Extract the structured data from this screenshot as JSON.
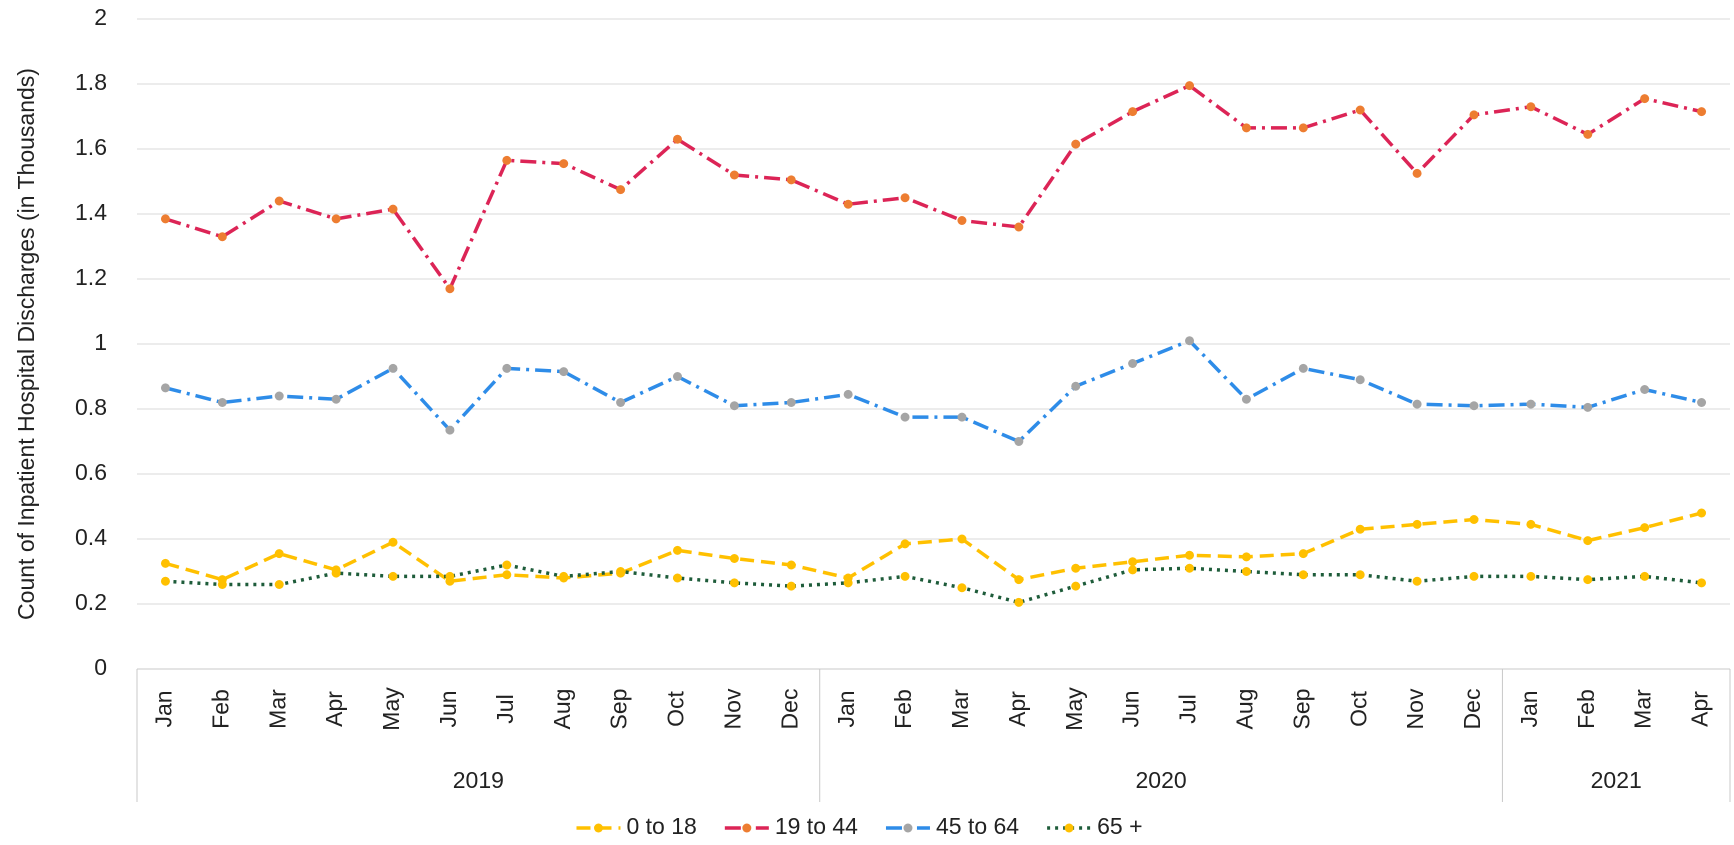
{
  "chart_data": {
    "type": "line",
    "y_label": "Count of Inpatient Hospital Discharges (in Thousands)",
    "groups": [
      {
        "label": "2019",
        "categories": [
          "Jan",
          "Feb",
          "Mar",
          "Apr",
          "May",
          "Jun",
          "Jul",
          "Aug",
          "Sep",
          "Oct",
          "Nov",
          "Dec"
        ]
      },
      {
        "label": "2020",
        "categories": [
          "Jan",
          "Feb",
          "Mar",
          "Apr",
          "May",
          "Jun",
          "Jul",
          "Aug",
          "Sep",
          "Oct",
          "Nov",
          "Dec"
        ]
      },
      {
        "label": "2021",
        "categories": [
          "Jan",
          "Feb",
          "Mar",
          "Apr"
        ]
      }
    ],
    "ylim": [
      0,
      2
    ],
    "yticks": [
      0,
      0.2,
      0.4,
      0.6,
      0.8,
      1,
      1.2,
      1.4,
      1.6,
      1.8,
      2
    ],
    "grid": true,
    "legend": "bottom",
    "series": [
      {
        "name": "0 to 18",
        "color": "#ffc000",
        "marker_color": "#ffc000",
        "dash": "dashed",
        "values": [
          0.325,
          0.275,
          0.355,
          0.305,
          0.39,
          0.27,
          0.29,
          0.28,
          0.295,
          0.365,
          0.34,
          0.32,
          0.28,
          0.385,
          0.4,
          0.275,
          0.31,
          0.33,
          0.35,
          0.345,
          0.355,
          0.43,
          0.445,
          0.46,
          0.445,
          0.395,
          0.435,
          0.48
        ]
      },
      {
        "name": "19 to 44",
        "color": "#dc2456",
        "marker_color": "#ed7d31",
        "dash": "dashdot",
        "values": [
          1.385,
          1.33,
          1.44,
          1.385,
          1.415,
          1.17,
          1.565,
          1.555,
          1.475,
          1.63,
          1.52,
          1.505,
          1.43,
          1.45,
          1.38,
          1.36,
          1.615,
          1.715,
          1.795,
          1.665,
          1.665,
          1.72,
          1.525,
          1.705,
          1.73,
          1.645,
          1.755,
          1.715
        ]
      },
      {
        "name": "45 to 64",
        "color": "#2e8ce8",
        "marker_color": "#a5a5a5",
        "dash": "dashdot",
        "values": [
          0.865,
          0.82,
          0.84,
          0.83,
          0.925,
          0.735,
          0.925,
          0.915,
          0.82,
          0.9,
          0.81,
          0.82,
          0.845,
          0.775,
          0.775,
          0.7,
          0.87,
          0.94,
          1.01,
          0.83,
          0.925,
          0.89,
          0.815,
          0.81,
          0.815,
          0.805,
          0.86,
          0.82
        ]
      },
      {
        "name": "65 +",
        "color": "#1e5c3a",
        "marker_color": "#ffc000",
        "dash": "dotted",
        "values": [
          0.27,
          0.26,
          0.26,
          0.295,
          0.285,
          0.285,
          0.32,
          0.285,
          0.3,
          0.28,
          0.265,
          0.255,
          0.265,
          0.285,
          0.25,
          0.205,
          0.255,
          0.305,
          0.31,
          0.3,
          0.29,
          0.29,
          0.27,
          0.285,
          0.285,
          0.275,
          0.285,
          0.265
        ]
      }
    ]
  }
}
